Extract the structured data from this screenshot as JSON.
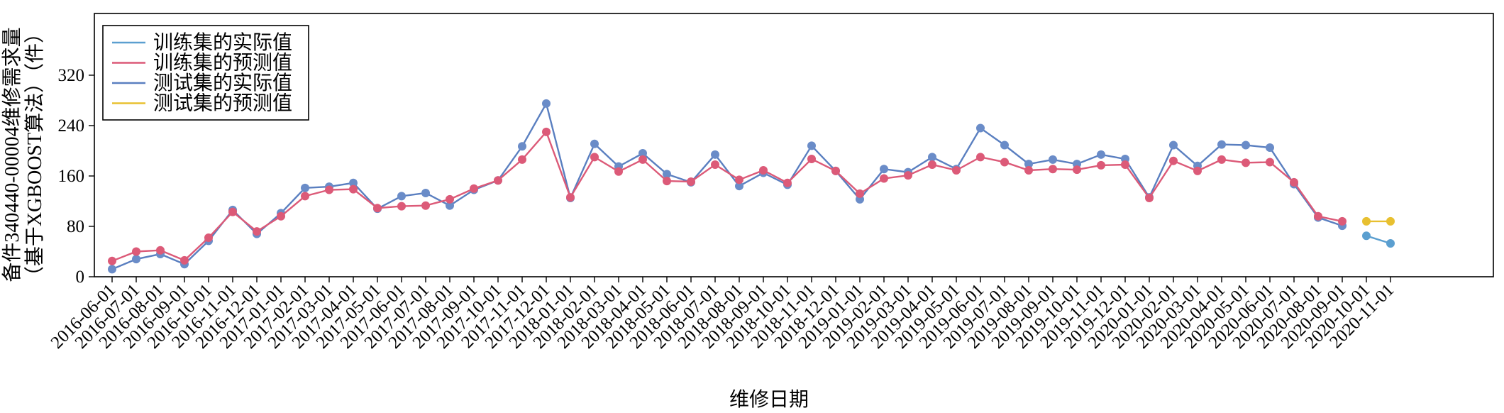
{
  "chart_data": {
    "type": "line",
    "xlabel": "维修日期",
    "ylabel_line1": "备件340440-00004维修需求量",
    "ylabel_line2": "（基于XGBOOST算法）（件）",
    "yticks": [
      0,
      80,
      160,
      240,
      320
    ],
    "ylim": [
      0,
      418
    ],
    "x_categories": [
      "2016-06-01",
      "2016-07-01",
      "2016-08-01",
      "2016-09-01",
      "2016-10-01",
      "2016-11-01",
      "2016-12-01",
      "2017-01-01",
      "2017-02-01",
      "2017-03-01",
      "2017-04-01",
      "2017-05-01",
      "2017-06-01",
      "2017-07-01",
      "2017-08-01",
      "2017-09-01",
      "2017-10-01",
      "2017-11-01",
      "2017-12-01",
      "2018-01-01",
      "2018-02-01",
      "2018-03-01",
      "2018-04-01",
      "2018-05-01",
      "2018-06-01",
      "2018-07-01",
      "2018-08-01",
      "2018-09-01",
      "2018-10-01",
      "2018-11-01",
      "2018-12-01",
      "2019-01-01",
      "2019-02-01",
      "2019-03-01",
      "2019-04-01",
      "2019-05-01",
      "2019-06-01",
      "2019-07-01",
      "2019-08-01",
      "2019-09-01",
      "2019-10-01",
      "2019-11-01",
      "2019-12-01",
      "2020-01-01",
      "2020-02-01",
      "2020-03-01",
      "2020-04-01",
      "2020-05-01",
      "2020-06-01",
      "2020-07-01",
      "2020-08-01",
      "2020-09-01",
      "2020-10-01",
      "2020-11-01"
    ],
    "series": [
      {
        "name": "训练集的实际值",
        "color": "#5b9fd0",
        "legend_color": "#5b9fd0",
        "start_index": 0,
        "values": [
          12,
          28,
          36,
          20,
          57,
          106,
          68,
          101,
          141,
          143,
          149,
          108,
          128,
          133,
          113,
          138,
          153,
          207,
          275,
          125,
          211,
          175,
          196,
          163,
          150,
          194,
          144,
          165,
          146,
          208,
          168,
          123,
          171,
          166,
          190,
          171,
          236,
          209,
          179,
          186,
          179,
          194,
          187,
          126,
          209,
          176,
          210,
          209,
          205,
          147,
          94,
          81
        ]
      },
      {
        "name": "训练集的预测值",
        "color": "#dc5a78",
        "legend_color": "#dc5a78",
        "start_index": 0,
        "values": [
          25,
          40,
          42,
          26,
          62,
          103,
          72,
          96,
          128,
          138,
          139,
          109,
          112,
          113,
          123,
          140,
          153,
          186,
          230,
          126,
          190,
          167,
          186,
          152,
          151,
          178,
          154,
          169,
          149,
          187,
          168,
          132,
          156,
          161,
          178,
          169,
          190,
          182,
          169,
          171,
          170,
          177,
          178,
          125,
          184,
          168,
          186,
          181,
          182,
          150,
          96,
          88
        ]
      },
      {
        "name": "测试集的实际值",
        "color": "#5b9fd0",
        "legend_color": "#5a7fc0",
        "start_index": 52,
        "values": [
          65,
          53
        ]
      },
      {
        "name": "测试集的预测值",
        "color": "#e8c030",
        "legend_color": "#e8c030",
        "start_index": 52,
        "values": [
          88,
          88
        ]
      }
    ],
    "train_line_color": "#5a7fc0",
    "train_marker_color": "#6a8cc8",
    "legend_position": "upper-left",
    "grid": false
  }
}
